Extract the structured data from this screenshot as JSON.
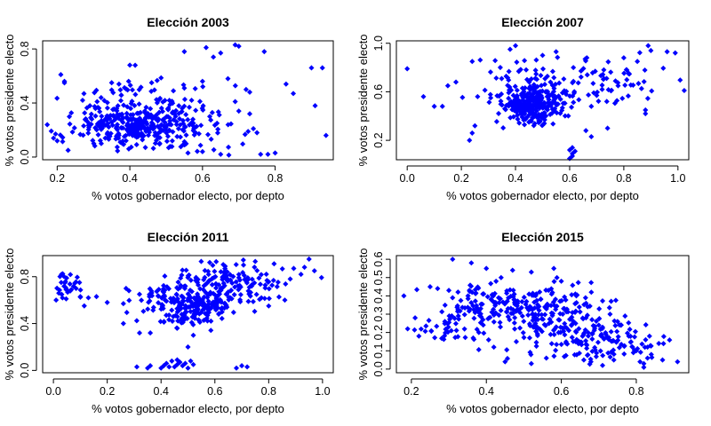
{
  "style": {
    "point_color": "#0000FF",
    "axis_color": "#000000",
    "background": "#FFFFFF"
  },
  "chart_data": [
    {
      "type": "scatter",
      "title": "Elección 2003",
      "xlabel": "% votos gobernador electo, por depto",
      "ylabel": "% votos presidente electo",
      "xlim": [
        0.16,
        0.96
      ],
      "ylim": [
        -0.02,
        0.86
      ],
      "xticks": [
        0.2,
        0.4,
        0.6,
        0.8
      ],
      "xtick_labels": [
        "0.2",
        "0.4",
        "0.6",
        "0.8"
      ],
      "yticks": [
        0.0,
        0.4,
        0.8
      ],
      "ytick_labels": [
        "0.0",
        "0.4",
        "0.8"
      ],
      "grid": false,
      "seed": 2003,
      "clusters": [
        {
          "n": 260,
          "cx": 0.4,
          "cy": 0.23,
          "sx": 0.08,
          "sy": 0.07
        },
        {
          "n": 110,
          "cx": 0.52,
          "cy": 0.24,
          "sx": 0.11,
          "sy": 0.12
        },
        {
          "n": 40,
          "cx": 0.42,
          "cy": 0.45,
          "sx": 0.1,
          "sy": 0.08
        }
      ],
      "points": [
        [
          0.55,
          0.78
        ],
        [
          0.61,
          0.81
        ],
        [
          0.69,
          0.83
        ],
        [
          0.7,
          0.82
        ],
        [
          0.77,
          0.78
        ],
        [
          0.93,
          0.66
        ],
        [
          0.9,
          0.66
        ],
        [
          0.91,
          0.38
        ],
        [
          0.94,
          0.16
        ],
        [
          0.85,
          0.47
        ],
        [
          0.83,
          0.54
        ],
        [
          0.73,
          0.48
        ],
        [
          0.72,
          0.5
        ],
        [
          0.21,
          0.61
        ],
        [
          0.22,
          0.56
        ],
        [
          0.2,
          0.12
        ],
        [
          0.19,
          0.14
        ],
        [
          0.23,
          0.05
        ],
        [
          0.78,
          0.02
        ],
        [
          0.76,
          0.02
        ],
        [
          0.8,
          0.03
        ],
        [
          0.67,
          0.58
        ],
        [
          0.6,
          0.56
        ],
        [
          0.63,
          0.74
        ],
        [
          0.65,
          0.77
        ],
        [
          0.4,
          0.68
        ],
        [
          0.35,
          0.55
        ],
        [
          0.37,
          0.54
        ],
        [
          0.56,
          0.03
        ],
        [
          0.6,
          0.04
        ],
        [
          0.65,
          0.02
        ],
        [
          0.27,
          0.42
        ],
        [
          0.29,
          0.38
        ],
        [
          0.31,
          0.41
        ],
        [
          0.46,
          0.55
        ],
        [
          0.55,
          0.51
        ],
        [
          0.57,
          0.42
        ],
        [
          0.69,
          0.41
        ],
        [
          0.7,
          0.34
        ],
        [
          0.73,
          0.32
        ],
        [
          0.74,
          0.21
        ],
        [
          0.75,
          0.18
        ],
        [
          0.62,
          0.3
        ],
        [
          0.64,
          0.25
        ]
      ]
    },
    {
      "type": "scatter",
      "title": "Elección 2007",
      "xlabel": "% votos gobernador electo, por depto",
      "ylabel": "% votos presidente electo",
      "xlim": [
        -0.04,
        1.04
      ],
      "ylim": [
        0.04,
        1.02
      ],
      "xticks": [
        0.0,
        0.2,
        0.4,
        0.6,
        0.8,
        1.0
      ],
      "xtick_labels": [
        "0.0",
        "0.2",
        "0.4",
        "0.6",
        "0.8",
        "1.0"
      ],
      "yticks": [
        0.2,
        0.6,
        1.0
      ],
      "ytick_labels": [
        "0.2",
        "0.6",
        "1.0"
      ],
      "grid": false,
      "seed": 2007,
      "clusters": [
        {
          "n": 230,
          "cx": 0.46,
          "cy": 0.49,
          "sx": 0.05,
          "sy": 0.07
        },
        {
          "n": 120,
          "cx": 0.45,
          "cy": 0.6,
          "sx": 0.1,
          "sy": 0.15
        },
        {
          "n": 55,
          "cx": 0.75,
          "cy": 0.7,
          "sx": 0.09,
          "sy": 0.1
        }
      ],
      "points": [
        [
          0.0,
          0.79
        ],
        [
          0.06,
          0.56
        ],
        [
          0.1,
          0.48
        ],
        [
          0.13,
          0.48
        ],
        [
          0.99,
          0.92
        ],
        [
          0.96,
          0.93
        ],
        [
          0.89,
          0.98
        ],
        [
          0.9,
          0.94
        ],
        [
          0.88,
          0.45
        ],
        [
          0.88,
          0.42
        ],
        [
          0.6,
          0.05
        ],
        [
          0.61,
          0.07
        ],
        [
          0.61,
          0.09
        ],
        [
          0.62,
          0.11
        ],
        [
          0.6,
          0.12
        ],
        [
          0.61,
          0.14
        ],
        [
          0.23,
          0.2
        ],
        [
          0.24,
          0.26
        ],
        [
          0.25,
          0.32
        ],
        [
          0.26,
          0.56
        ],
        [
          0.24,
          0.85
        ],
        [
          0.4,
          0.98
        ],
        [
          0.38,
          0.95
        ],
        [
          0.68,
          0.23
        ],
        [
          0.66,
          0.28
        ],
        [
          0.74,
          0.3
        ],
        [
          0.15,
          0.65
        ],
        [
          0.18,
          0.68
        ],
        [
          0.8,
          0.88
        ],
        [
          0.85,
          0.85
        ],
        [
          0.72,
          0.62
        ],
        [
          0.7,
          0.57
        ],
        [
          0.68,
          0.48
        ],
        [
          0.55,
          0.93
        ],
        [
          0.5,
          0.9
        ]
      ]
    },
    {
      "type": "scatter",
      "title": "Elección 2011",
      "xlabel": "% votos gobernador electo, por depto",
      "ylabel": "% votos presidente electo",
      "xlim": [
        -0.04,
        1.04
      ],
      "ylim": [
        -0.02,
        0.98
      ],
      "xticks": [
        0.0,
        0.2,
        0.4,
        0.6,
        0.8,
        1.0
      ],
      "xtick_labels": [
        "0.0",
        "0.2",
        "0.4",
        "0.6",
        "0.8",
        "1.0"
      ],
      "yticks": [
        0.0,
        0.4,
        0.8
      ],
      "ytick_labels": [
        "0.0",
        "0.4",
        "0.8"
      ],
      "grid": false,
      "seed": 2011,
      "clusters": [
        {
          "n": 220,
          "cx": 0.5,
          "cy": 0.57,
          "sx": 0.09,
          "sy": 0.09
        },
        {
          "n": 150,
          "cx": 0.66,
          "cy": 0.74,
          "sx": 0.1,
          "sy": 0.09
        },
        {
          "n": 30,
          "cx": 0.06,
          "cy": 0.72,
          "sx": 0.025,
          "sy": 0.06
        }
      ],
      "points": [
        [
          0.31,
          0.03
        ],
        [
          0.35,
          0.02
        ],
        [
          0.36,
          0.04
        ],
        [
          0.4,
          0.02
        ],
        [
          0.41,
          0.04
        ],
        [
          0.42,
          0.06
        ],
        [
          0.44,
          0.08
        ],
        [
          0.45,
          0.03
        ],
        [
          0.46,
          0.05
        ],
        [
          0.47,
          0.07
        ],
        [
          0.48,
          0.04
        ],
        [
          0.49,
          0.06
        ],
        [
          0.5,
          0.02
        ],
        [
          0.51,
          0.08
        ],
        [
          0.46,
          0.09
        ],
        [
          0.43,
          0.03
        ],
        [
          0.52,
          0.05
        ],
        [
          0.68,
          0.02
        ],
        [
          0.7,
          0.04
        ],
        [
          0.72,
          0.03
        ],
        [
          0.95,
          0.95
        ],
        [
          0.97,
          0.85
        ],
        [
          0.92,
          0.82
        ],
        [
          0.1,
          0.63
        ],
        [
          0.13,
          0.62
        ],
        [
          0.16,
          0.63
        ],
        [
          0.2,
          0.58
        ],
        [
          0.26,
          0.57
        ],
        [
          0.27,
          0.7
        ],
        [
          0.32,
          0.32
        ],
        [
          0.36,
          0.32
        ],
        [
          0.26,
          0.4
        ],
        [
          0.8,
          0.55
        ],
        [
          0.86,
          0.6
        ],
        [
          0.75,
          0.93
        ],
        [
          0.82,
          0.91
        ],
        [
          0.88,
          0.78
        ],
        [
          0.5,
          0.2
        ],
        [
          0.52,
          0.3
        ],
        [
          0.46,
          0.36
        ],
        [
          0.01,
          0.6
        ],
        [
          0.02,
          0.66
        ],
        [
          0.03,
          0.82
        ],
        [
          0.04,
          0.8
        ]
      ]
    },
    {
      "type": "scatter",
      "title": "Elección 2015",
      "xlabel": "% votos gobernador electo, por depto",
      "ylabel": "% votos presidente electo",
      "xlim": [
        0.16,
        0.94
      ],
      "ylim": [
        -0.02,
        0.62
      ],
      "xticks": [
        0.2,
        0.4,
        0.6,
        0.8
      ],
      "xtick_labels": [
        "0.2",
        "0.4",
        "0.6",
        "0.8"
      ],
      "yticks": [
        0.0,
        0.1,
        0.2,
        0.3,
        0.4,
        0.5,
        0.6
      ],
      "ytick_labels": [
        "0.0",
        "0.1",
        "0.2",
        "0.3",
        "0.4",
        "0.5",
        "0.6"
      ],
      "grid": false,
      "seed": 2015,
      "clusters": [
        {
          "n": 140,
          "cx": 0.45,
          "cy": 0.36,
          "sx": 0.09,
          "sy": 0.06
        },
        {
          "n": 160,
          "cx": 0.58,
          "cy": 0.26,
          "sx": 0.08,
          "sy": 0.09
        },
        {
          "n": 90,
          "cx": 0.72,
          "cy": 0.14,
          "sx": 0.06,
          "sy": 0.07
        },
        {
          "n": 40,
          "cx": 0.3,
          "cy": 0.25,
          "sx": 0.05,
          "sy": 0.06
        }
      ],
      "points": [
        [
          0.31,
          0.6
        ],
        [
          0.18,
          0.4
        ],
        [
          0.19,
          0.22
        ],
        [
          0.22,
          0.18
        ],
        [
          0.21,
          0.28
        ],
        [
          0.25,
          0.45
        ],
        [
          0.27,
          0.44
        ],
        [
          0.3,
          0.43
        ],
        [
          0.36,
          0.58
        ],
        [
          0.4,
          0.55
        ],
        [
          0.47,
          0.54
        ],
        [
          0.52,
          0.53
        ],
        [
          0.58,
          0.55
        ],
        [
          0.83,
          0.06
        ],
        [
          0.82,
          0.03
        ],
        [
          0.81,
          0.04
        ],
        [
          0.84,
          0.08
        ],
        [
          0.8,
          0.1
        ],
        [
          0.79,
          0.12
        ],
        [
          0.82,
          0.01
        ],
        [
          0.91,
          0.04
        ],
        [
          0.87,
          0.05
        ],
        [
          0.86,
          0.14
        ],
        [
          0.83,
          0.12
        ],
        [
          0.78,
          0.18
        ],
        [
          0.77,
          0.29
        ],
        [
          0.75,
          0.26
        ],
        [
          0.73,
          0.3
        ],
        [
          0.45,
          0.04
        ],
        [
          0.52,
          0.03
        ],
        [
          0.56,
          0.06
        ],
        [
          0.66,
          0.05
        ],
        [
          0.71,
          0.02
        ],
        [
          0.74,
          0.05
        ],
        [
          0.68,
          0.42
        ],
        [
          0.64,
          0.4
        ],
        [
          0.6,
          0.48
        ],
        [
          0.7,
          0.24
        ],
        [
          0.42,
          0.12
        ],
        [
          0.48,
          0.15
        ],
        [
          0.38,
          0.2
        ]
      ]
    }
  ]
}
